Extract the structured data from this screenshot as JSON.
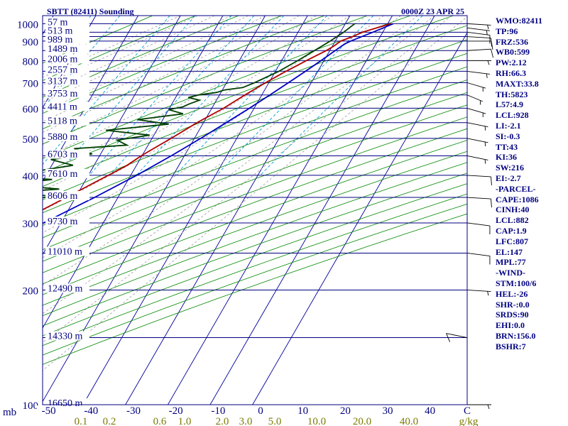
{
  "header": {
    "title": "SBTT (82411) Sounding",
    "datetime": "0000Z 23 APR 25"
  },
  "colors": {
    "frame": "#000080",
    "isobar": "#000080",
    "isotherm": "#0000a0",
    "dry_adiabat": "#008800",
    "moist_adiabat": "#9a9a9a",
    "mixing_ratio": "#00a0d8",
    "temperature": "#b00000",
    "dewpoint": "#004000",
    "parcel": "#0000c0",
    "wind_barb": "#000000",
    "bottom_temp_labels": "#000080",
    "bottom_mixing_labels": "#7a7a00"
  },
  "stats": [
    "WMO:82411",
    "TP:96",
    "FRZ:536",
    "WB0:599",
    "PW:2.12",
    "RH:66.3",
    "MAXT:33.8",
    "TH:5823",
    "L57:4.9",
    "LCL:928",
    "LI:-2.1",
    "SI:-0.3",
    "TT:43",
    "KI:36",
    "SW:216",
    "EI:-2.7",
    "-PARCEL-",
    "CAPE:1086",
    "CINH:40",
    "LCL:882",
    "CAP:1.9",
    "LFC:807",
    "EL:147",
    "MPL:77",
    "-WIND-",
    "STM:100/6",
    "HEL:-26",
    "SHR-:0.0",
    "SRDS:90",
    "EHI:0.0",
    "BRN:156.0",
    "BSHR:7"
  ],
  "chart_data": {
    "type": "line",
    "subtype": "skew-t log-p sounding",
    "title": "SBTT (82411) Sounding",
    "subtitle": "0000Z 23 APR 25",
    "xlabel": "",
    "ylabel": "mb",
    "pressure_range": [
      1050,
      100
    ],
    "temperature_range": [
      -50,
      50
    ],
    "y_scale": "log",
    "pressure_ticks": [
      100,
      200,
      300,
      400,
      500,
      600,
      700,
      800,
      900,
      1000
    ],
    "isobars": [
      100,
      150,
      200,
      250,
      300,
      350,
      400,
      450,
      500,
      550,
      600,
      650,
      700,
      750,
      800,
      850,
      900,
      925,
      950,
      1000
    ],
    "temperature_ticks": [
      "-50",
      "-40",
      "-30",
      "-20",
      "-10",
      "0",
      "10",
      "20",
      "30",
      "40",
      "C"
    ],
    "mixing_ratio_labels": [
      "0.1",
      "0.2",
      "0.6",
      "1.0",
      "2.0",
      "3.0",
      "5.0",
      "10.0",
      "20.0",
      "40.0",
      "g/kg"
    ],
    "mixing_ratio_values": [
      0.1,
      0.2,
      0.6,
      1.0,
      2.0,
      3.0,
      5.0,
      10.0,
      20.0,
      40.0
    ],
    "height_labels": [
      {
        "p": 100,
        "label": "16650 m"
      },
      {
        "p": 150,
        "label": "14330 m"
      },
      {
        "p": 200,
        "label": "12490 m"
      },
      {
        "p": 250,
        "label": "11010 m"
      },
      {
        "p": 300,
        "label": "9730 m"
      },
      {
        "p": 350,
        "label": "8606 m"
      },
      {
        "p": 400,
        "label": "7610 m"
      },
      {
        "p": 450,
        "label": "6703 m"
      },
      {
        "p": 500,
        "label": "5880 m"
      },
      {
        "p": 550,
        "label": "5118 m"
      },
      {
        "p": 600,
        "label": "4411 m"
      },
      {
        "p": 650,
        "label": "3753 m"
      },
      {
        "p": 700,
        "label": "3137 m"
      },
      {
        "p": 750,
        "label": "2557 m"
      },
      {
        "p": 800,
        "label": "2006 m"
      },
      {
        "p": 850,
        "label": "1489 m"
      },
      {
        "p": 900,
        "label": "989 m"
      },
      {
        "p": 950,
        "label": "513 m"
      },
      {
        "p": 1000,
        "label": "57 m"
      }
    ],
    "series": [
      {
        "key": "temperature",
        "points": [
          [
            1000,
            30.8
          ],
          [
            975,
            28.0
          ],
          [
            950,
            25.2
          ],
          [
            925,
            23.5
          ],
          [
            900,
            21.3
          ],
          [
            875,
            20.4
          ],
          [
            850,
            19.2
          ],
          [
            800,
            15.8
          ],
          [
            775,
            14.2
          ],
          [
            750,
            12.5
          ],
          [
            700,
            9.2
          ],
          [
            650,
            6.0
          ],
          [
            600,
            2.8
          ],
          [
            550,
            -1.5
          ],
          [
            500,
            -5.5
          ],
          [
            475,
            -7.8
          ],
          [
            450,
            -10.2
          ],
          [
            425,
            -12.2
          ],
          [
            400,
            -15.3
          ],
          [
            350,
            -22.2
          ],
          [
            300,
            -30.3
          ],
          [
            250,
            -40.2
          ],
          [
            225,
            -46.2
          ],
          [
            200,
            -52.6
          ],
          [
            175,
            -61.0
          ],
          [
            150,
            -69.5
          ],
          [
            125,
            -76.5
          ],
          [
            100,
            -83.0
          ]
        ]
      },
      {
        "key": "dewpoint",
        "points": [
          [
            1000,
            22.2
          ],
          [
            950,
            20.8
          ],
          [
            900,
            18.8
          ],
          [
            850,
            16.4
          ],
          [
            800,
            13.8
          ],
          [
            750,
            10.8
          ],
          [
            700,
            6.6
          ],
          [
            680,
            4.5
          ],
          [
            670,
            0.5
          ],
          [
            660,
            -1.0
          ],
          [
            650,
            -5.0
          ],
          [
            640,
            -7.0
          ],
          [
            630,
            -4.0
          ],
          [
            615,
            -6.0
          ],
          [
            605,
            -7.0
          ],
          [
            595,
            -10.0
          ],
          [
            580,
            -6.0
          ],
          [
            560,
            -16.0
          ],
          [
            545,
            -8.0
          ],
          [
            525,
            -22.0
          ],
          [
            510,
            -11.0
          ],
          [
            495,
            -18.0
          ],
          [
            480,
            -15.0
          ],
          [
            470,
            -27.0
          ],
          [
            455,
            -22.0
          ],
          [
            440,
            -31.0
          ],
          [
            425,
            -25.0
          ],
          [
            410,
            -33.0
          ],
          [
            400,
            -43.0
          ],
          [
            390,
            -28.0
          ],
          [
            378,
            -38.0
          ],
          [
            368,
            -25.0
          ],
          [
            362,
            -34.0
          ],
          [
            352,
            -26.0
          ],
          [
            340,
            -34.0
          ],
          [
            320,
            -36.0
          ],
          [
            300,
            -40.0
          ],
          [
            285,
            -40.0
          ],
          [
            270,
            -38.0
          ],
          [
            260,
            -41.0
          ],
          [
            250,
            -44.0
          ],
          [
            230,
            -45.0
          ],
          [
            215,
            -47.0
          ],
          [
            200,
            -52.0
          ],
          [
            185,
            -52.0
          ],
          [
            170,
            -58.0
          ],
          [
            150,
            -68.0
          ],
          [
            130,
            -76.0
          ],
          [
            100,
            -95.0
          ]
        ]
      },
      {
        "key": "parcel",
        "points": [
          [
            1000,
            31.3
          ],
          [
            950,
            27.7
          ],
          [
            900,
            23.6
          ],
          [
            882,
            22.5
          ],
          [
            850,
            21.3
          ],
          [
            800,
            19.3
          ],
          [
            750,
            17.1
          ],
          [
            700,
            14.6
          ],
          [
            650,
            11.9
          ],
          [
            600,
            8.9
          ],
          [
            550,
            5.4
          ],
          [
            500,
            1.5
          ],
          [
            450,
            -3.1
          ],
          [
            400,
            -8.6
          ],
          [
            350,
            -15.5
          ],
          [
            300,
            -24.1
          ],
          [
            250,
            -35.3
          ],
          [
            200,
            -50.0
          ],
          [
            175,
            -59.0
          ],
          [
            150,
            -69.0
          ],
          [
            125,
            -79.0
          ]
        ]
      }
    ],
    "wind_barbs": [
      {
        "p": 1000,
        "dir": 100,
        "spd": 6
      },
      {
        "p": 975,
        "dir": 110,
        "spd": 8
      },
      {
        "p": 950,
        "dir": 110,
        "spd": 10
      },
      {
        "p": 925,
        "dir": 100,
        "spd": 10
      },
      {
        "p": 900,
        "dir": 90,
        "spd": 10
      },
      {
        "p": 850,
        "dir": 80,
        "spd": 10
      },
      {
        "p": 800,
        "dir": 90,
        "spd": 5
      },
      {
        "p": 750,
        "dir": 110,
        "spd": 5
      },
      {
        "p": 700,
        "dir": 130,
        "spd": 5
      },
      {
        "p": 650,
        "dir": 140,
        "spd": 5
      },
      {
        "p": 600,
        "dir": 130,
        "spd": 5
      },
      {
        "p": 550,
        "dir": 120,
        "spd": 5
      },
      {
        "p": 500,
        "dir": 120,
        "spd": 5
      },
      {
        "p": 450,
        "dir": 120,
        "spd": 5
      },
      {
        "p": 400,
        "dir": 100,
        "spd": 10
      },
      {
        "p": 350,
        "dir": 100,
        "spd": 10
      },
      {
        "p": 300,
        "dir": 110,
        "spd": 10
      },
      {
        "p": 250,
        "dir": 110,
        "spd": 10
      },
      {
        "p": 200,
        "dir": 100,
        "spd": 5
      },
      {
        "p": 150,
        "dir": 300,
        "spd": 10
      },
      {
        "p": 100,
        "dir": 90,
        "spd": 5
      }
    ]
  }
}
